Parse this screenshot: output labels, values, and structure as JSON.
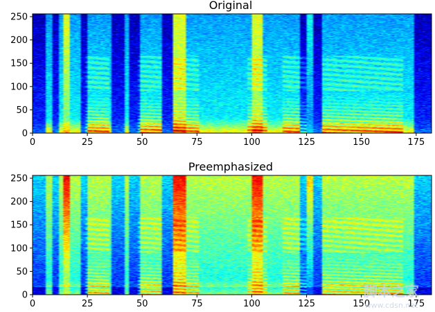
{
  "chart_data": [
    {
      "type": "heatmap",
      "title": "Original",
      "xlabel": "",
      "ylabel": "",
      "xlim": [
        0,
        182
      ],
      "ylim": [
        0,
        256
      ],
      "x_ticks": [
        "0",
        "25",
        "50",
        "75",
        "100",
        "125",
        "150",
        "175"
      ],
      "y_ticks": [
        "0",
        "50",
        "100",
        "150",
        "200",
        "250"
      ],
      "colormap": "jet",
      "grid": false
    },
    {
      "type": "heatmap",
      "title": "Preemphasized",
      "xlabel": "",
      "ylabel": "",
      "xlim": [
        0,
        182
      ],
      "ylim": [
        0,
        256
      ],
      "x_ticks": [
        "0",
        "25",
        "50",
        "75",
        "100",
        "125",
        "150",
        "175"
      ],
      "y_ticks": [
        "0",
        "50",
        "100",
        "150",
        "200",
        "250"
      ],
      "colormap": "jet",
      "grid": false
    }
  ],
  "watermark": {
    "text": "脚本之家",
    "url": "www.cdsn.net"
  }
}
